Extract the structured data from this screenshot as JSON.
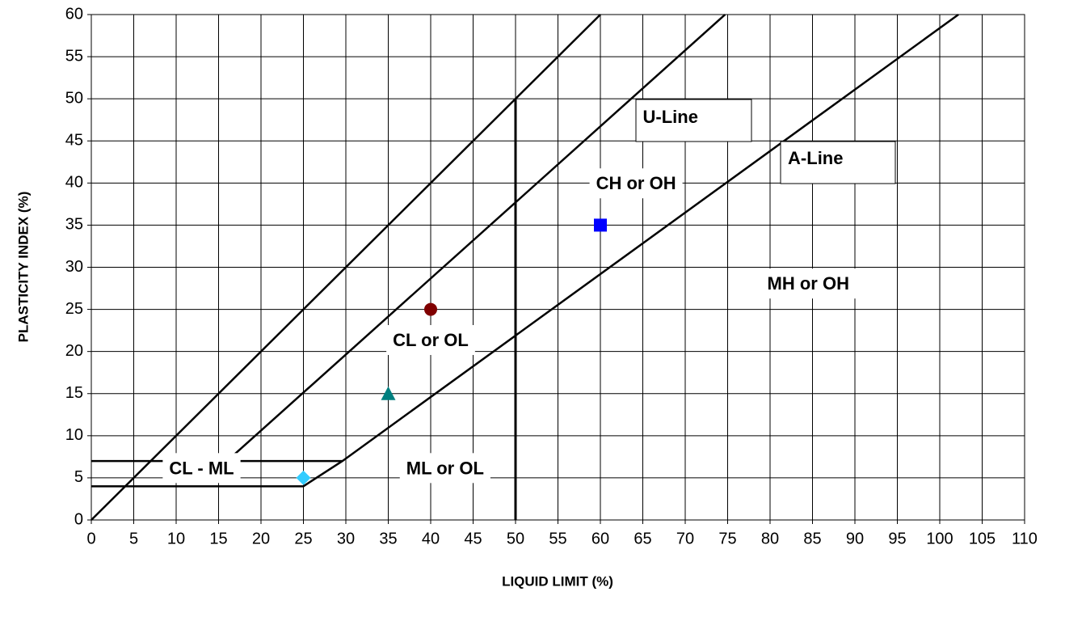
{
  "chart_data": {
    "type": "scatter",
    "x_label": "LIQUID LIMIT (%)",
    "y_label": "PLASTICITY INDEX (%)",
    "xlim": [
      0,
      110
    ],
    "ylim": [
      0,
      60
    ],
    "xticks": [
      0,
      5,
      10,
      15,
      20,
      25,
      30,
      35,
      40,
      45,
      50,
      55,
      60,
      65,
      70,
      75,
      80,
      85,
      90,
      95,
      100,
      105,
      110
    ],
    "yticks": [
      0,
      5,
      10,
      15,
      20,
      25,
      30,
      35,
      40,
      45,
      50,
      55,
      60
    ],
    "grid": true,
    "lines": [
      {
        "x": [
          0,
          60
        ],
        "values": [
          0,
          60
        ],
        "color": "#000000"
      },
      {
        "x": [
          16,
          74.7
        ],
        "values": [
          7,
          60
        ],
        "color": "#000000"
      },
      {
        "x": [
          0,
          25,
          29.6,
          102.2
        ],
        "values": [
          4,
          4,
          7,
          60
        ],
        "color": "#000000"
      },
      {
        "x": [
          0,
          29.6
        ],
        "values": [
          7,
          7
        ],
        "color": "#000000"
      },
      {
        "x": [
          50,
          50
        ],
        "values": [
          0,
          50
        ],
        "color": "#000000"
      }
    ],
    "series": [
      {
        "x": [
          40
        ],
        "values": [
          25
        ],
        "color": "#800000",
        "marker": "circle"
      },
      {
        "x": [
          35
        ],
        "values": [
          15
        ],
        "color": "#008080",
        "marker": "triangle"
      },
      {
        "x": [
          60
        ],
        "values": [
          35
        ],
        "color": "#0000ff",
        "marker": "square"
      },
      {
        "x": [
          25
        ],
        "values": [
          5
        ],
        "color": "#33ccff",
        "marker": "diamond"
      }
    ],
    "annotations": [
      "U-Line",
      "A-Line",
      "CH or OH",
      "MH or OH",
      "CL or OL",
      "ML or OL",
      "CL - ML"
    ],
    "annotation_color": "#1a4d1a"
  }
}
